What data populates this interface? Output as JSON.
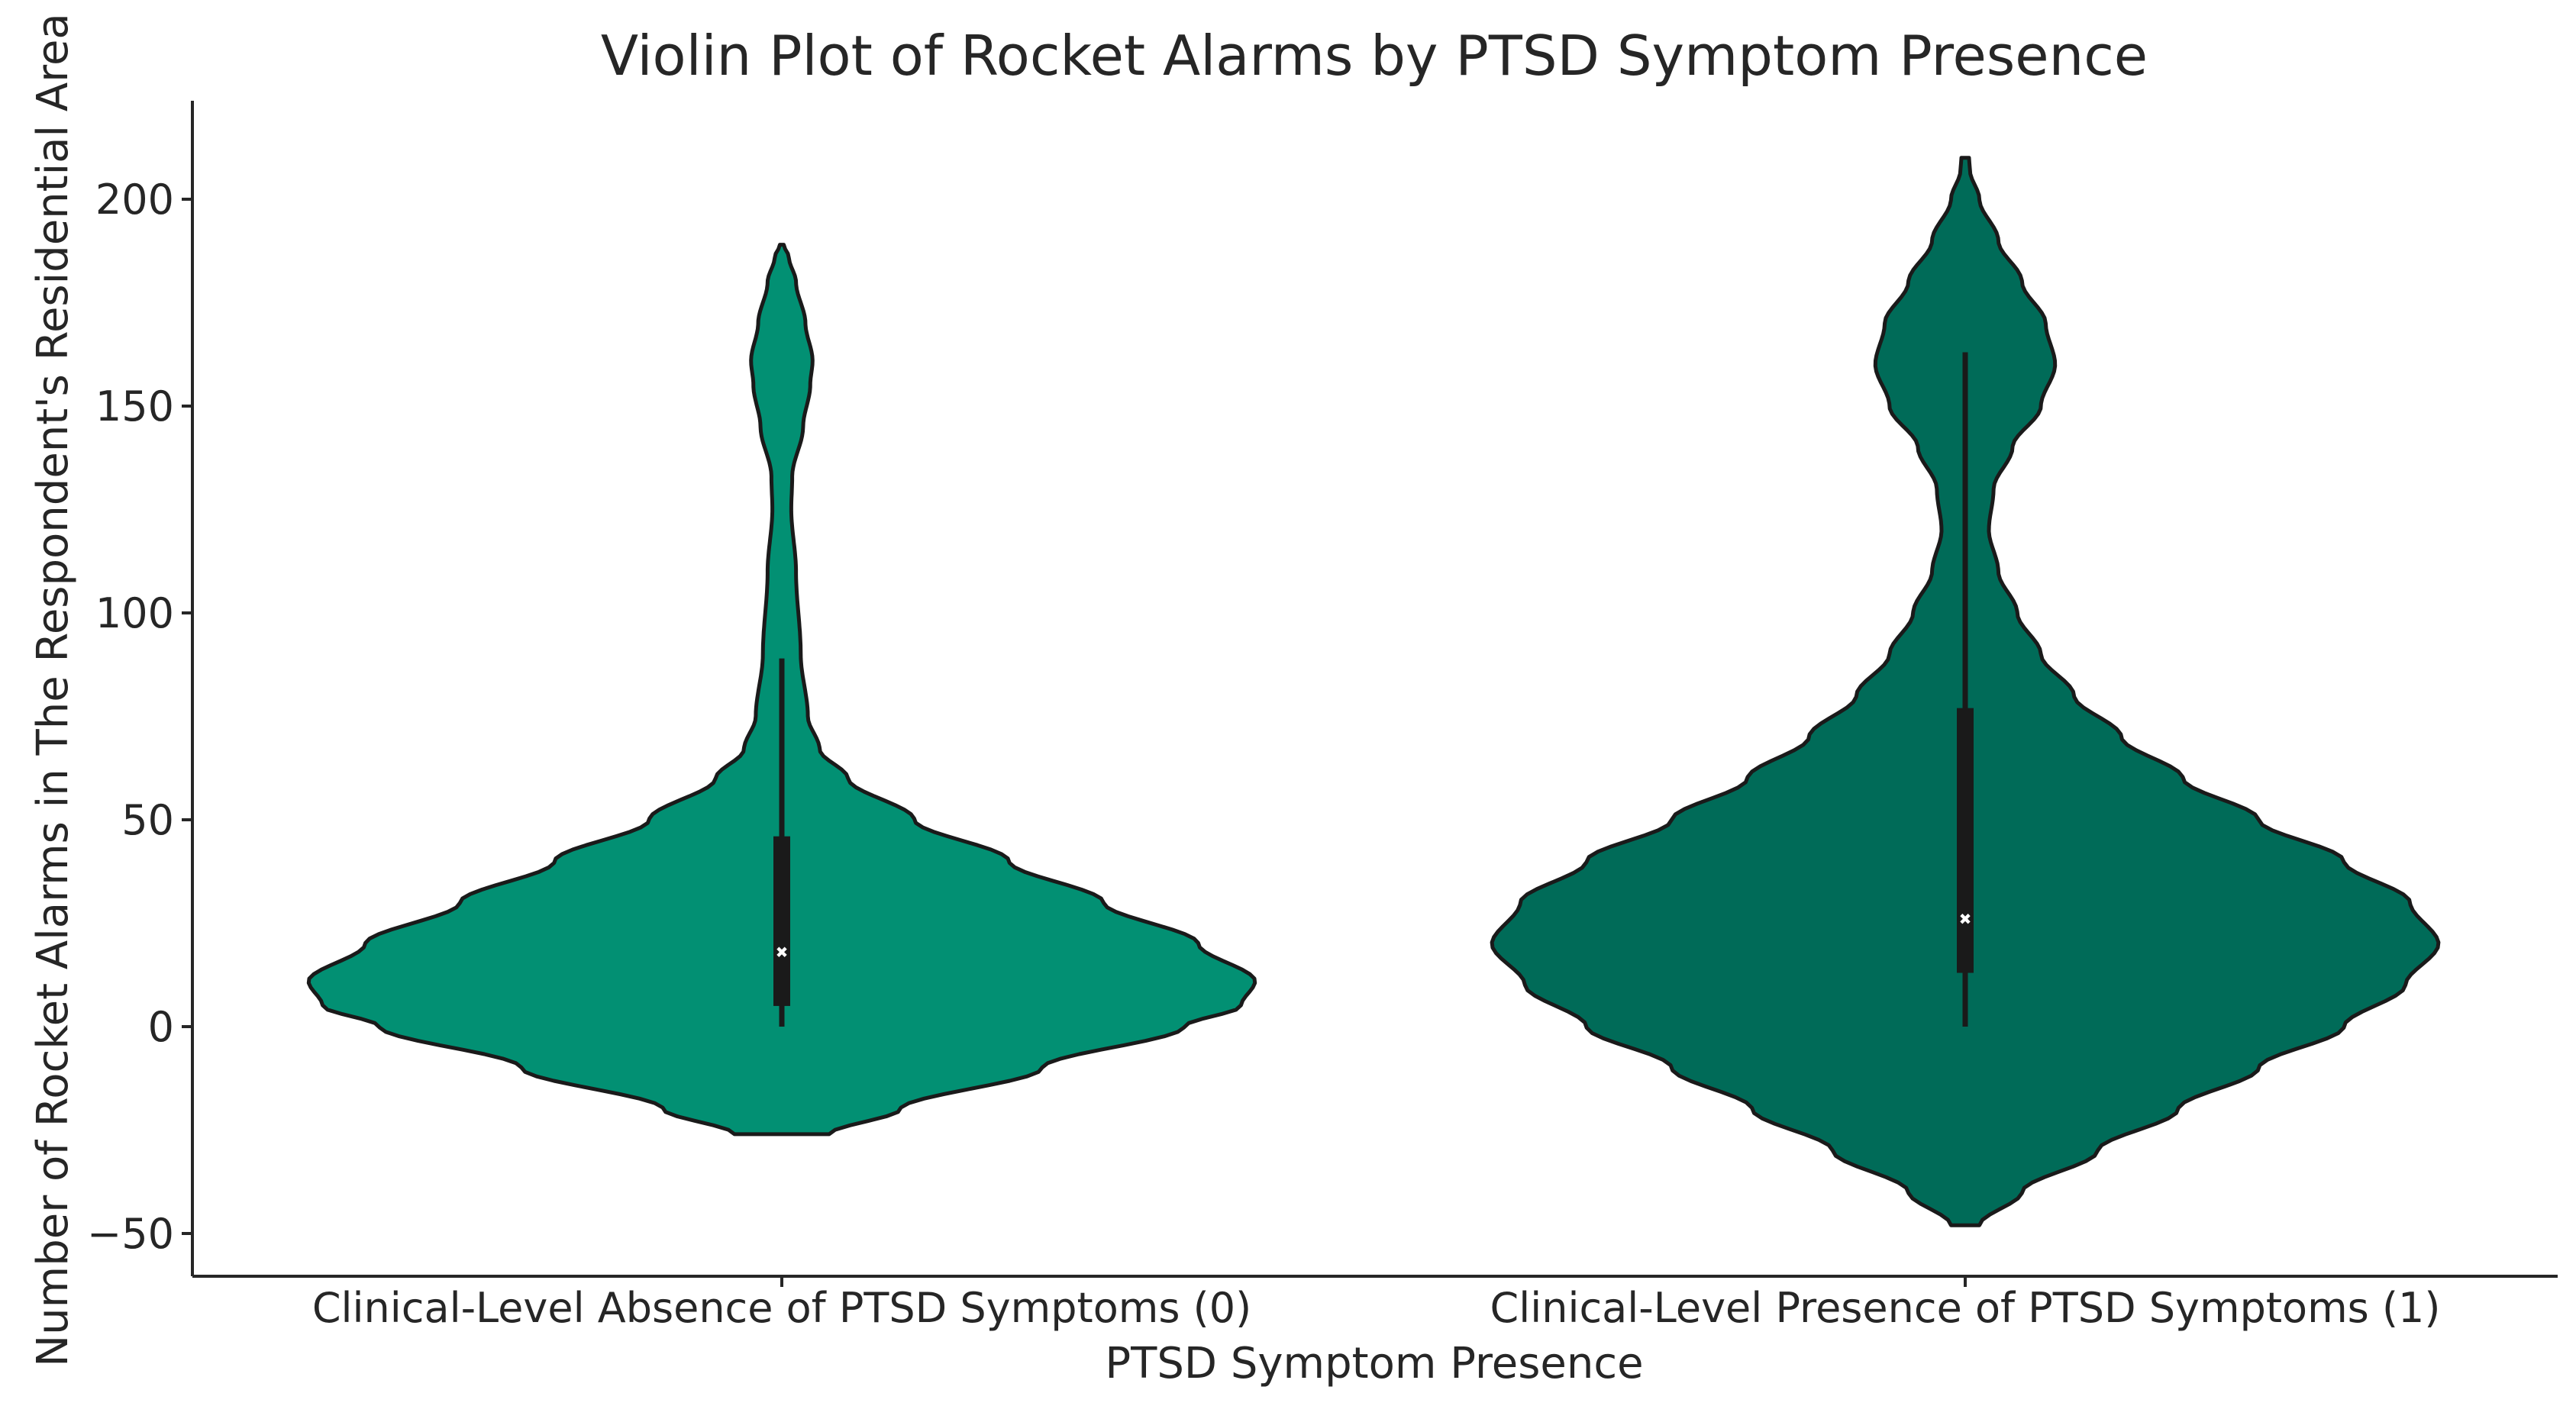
{
  "chart_data": {
    "type": "violin",
    "title": "Violin Plot of Rocket Alarms by PTSD Symptom Presence",
    "xlabel": "PTSD Symptom Presence",
    "ylabel": "Number of Rocket Alarms in The Respondent's Residential Area",
    "ylim": [
      -60,
      225
    ],
    "yticks": [
      -50,
      0,
      50,
      100,
      150,
      200
    ],
    "grid": false,
    "categories": [
      "Clinical-Level Absence of PTSD Symptoms (0)",
      "Clinical-Level Presence of PTSD Symptoms (1)"
    ],
    "series": [
      {
        "category": "Clinical-Level Absence of PTSD Symptoms (0)",
        "color": "#029073",
        "density_min": -26,
        "density_max": 189,
        "density_profile": [
          [
            -26,
            0.1
          ],
          [
            -20,
            0.25
          ],
          [
            -10,
            0.55
          ],
          [
            0,
            0.85
          ],
          [
            5,
            0.97
          ],
          [
            11,
            1.0
          ],
          [
            20,
            0.88
          ],
          [
            30,
            0.68
          ],
          [
            40,
            0.48
          ],
          [
            50,
            0.28
          ],
          [
            60,
            0.14
          ],
          [
            67,
            0.08
          ],
          [
            75,
            0.055
          ],
          [
            90,
            0.04
          ],
          [
            110,
            0.03
          ],
          [
            125,
            0.02
          ],
          [
            133,
            0.022
          ],
          [
            145,
            0.045
          ],
          [
            155,
            0.06
          ],
          [
            161,
            0.065
          ],
          [
            170,
            0.05
          ],
          [
            180,
            0.03
          ],
          [
            186,
            0.015
          ],
          [
            189,
            0.004
          ]
        ],
        "box": {
          "whisker_low": 0,
          "q1": 5,
          "median": 18,
          "q3": 46,
          "whisker_high": 89
        }
      },
      {
        "category": "Clinical-Level Presence of PTSD Symptoms (1)",
        "color": "#006b58",
        "density_min": -48,
        "density_max": 210,
        "density_profile": [
          [
            -48,
            0.03
          ],
          [
            -40,
            0.12
          ],
          [
            -30,
            0.28
          ],
          [
            -20,
            0.45
          ],
          [
            -10,
            0.62
          ],
          [
            0,
            0.8
          ],
          [
            10,
            0.93
          ],
          [
            20,
            1.0
          ],
          [
            30,
            0.94
          ],
          [
            40,
            0.8
          ],
          [
            50,
            0.62
          ],
          [
            60,
            0.46
          ],
          [
            70,
            0.33
          ],
          [
            80,
            0.23
          ],
          [
            90,
            0.16
          ],
          [
            100,
            0.11
          ],
          [
            110,
            0.07
          ],
          [
            120,
            0.05
          ],
          [
            130,
            0.06
          ],
          [
            140,
            0.1
          ],
          [
            150,
            0.16
          ],
          [
            160,
            0.19
          ],
          [
            170,
            0.17
          ],
          [
            180,
            0.12
          ],
          [
            190,
            0.07
          ],
          [
            200,
            0.03
          ],
          [
            207,
            0.01
          ],
          [
            210,
            0.008
          ]
        ],
        "box": {
          "whisker_low": 0,
          "q1": 13,
          "median": 26,
          "q3": 77,
          "whisker_high": 163
        }
      }
    ]
  }
}
